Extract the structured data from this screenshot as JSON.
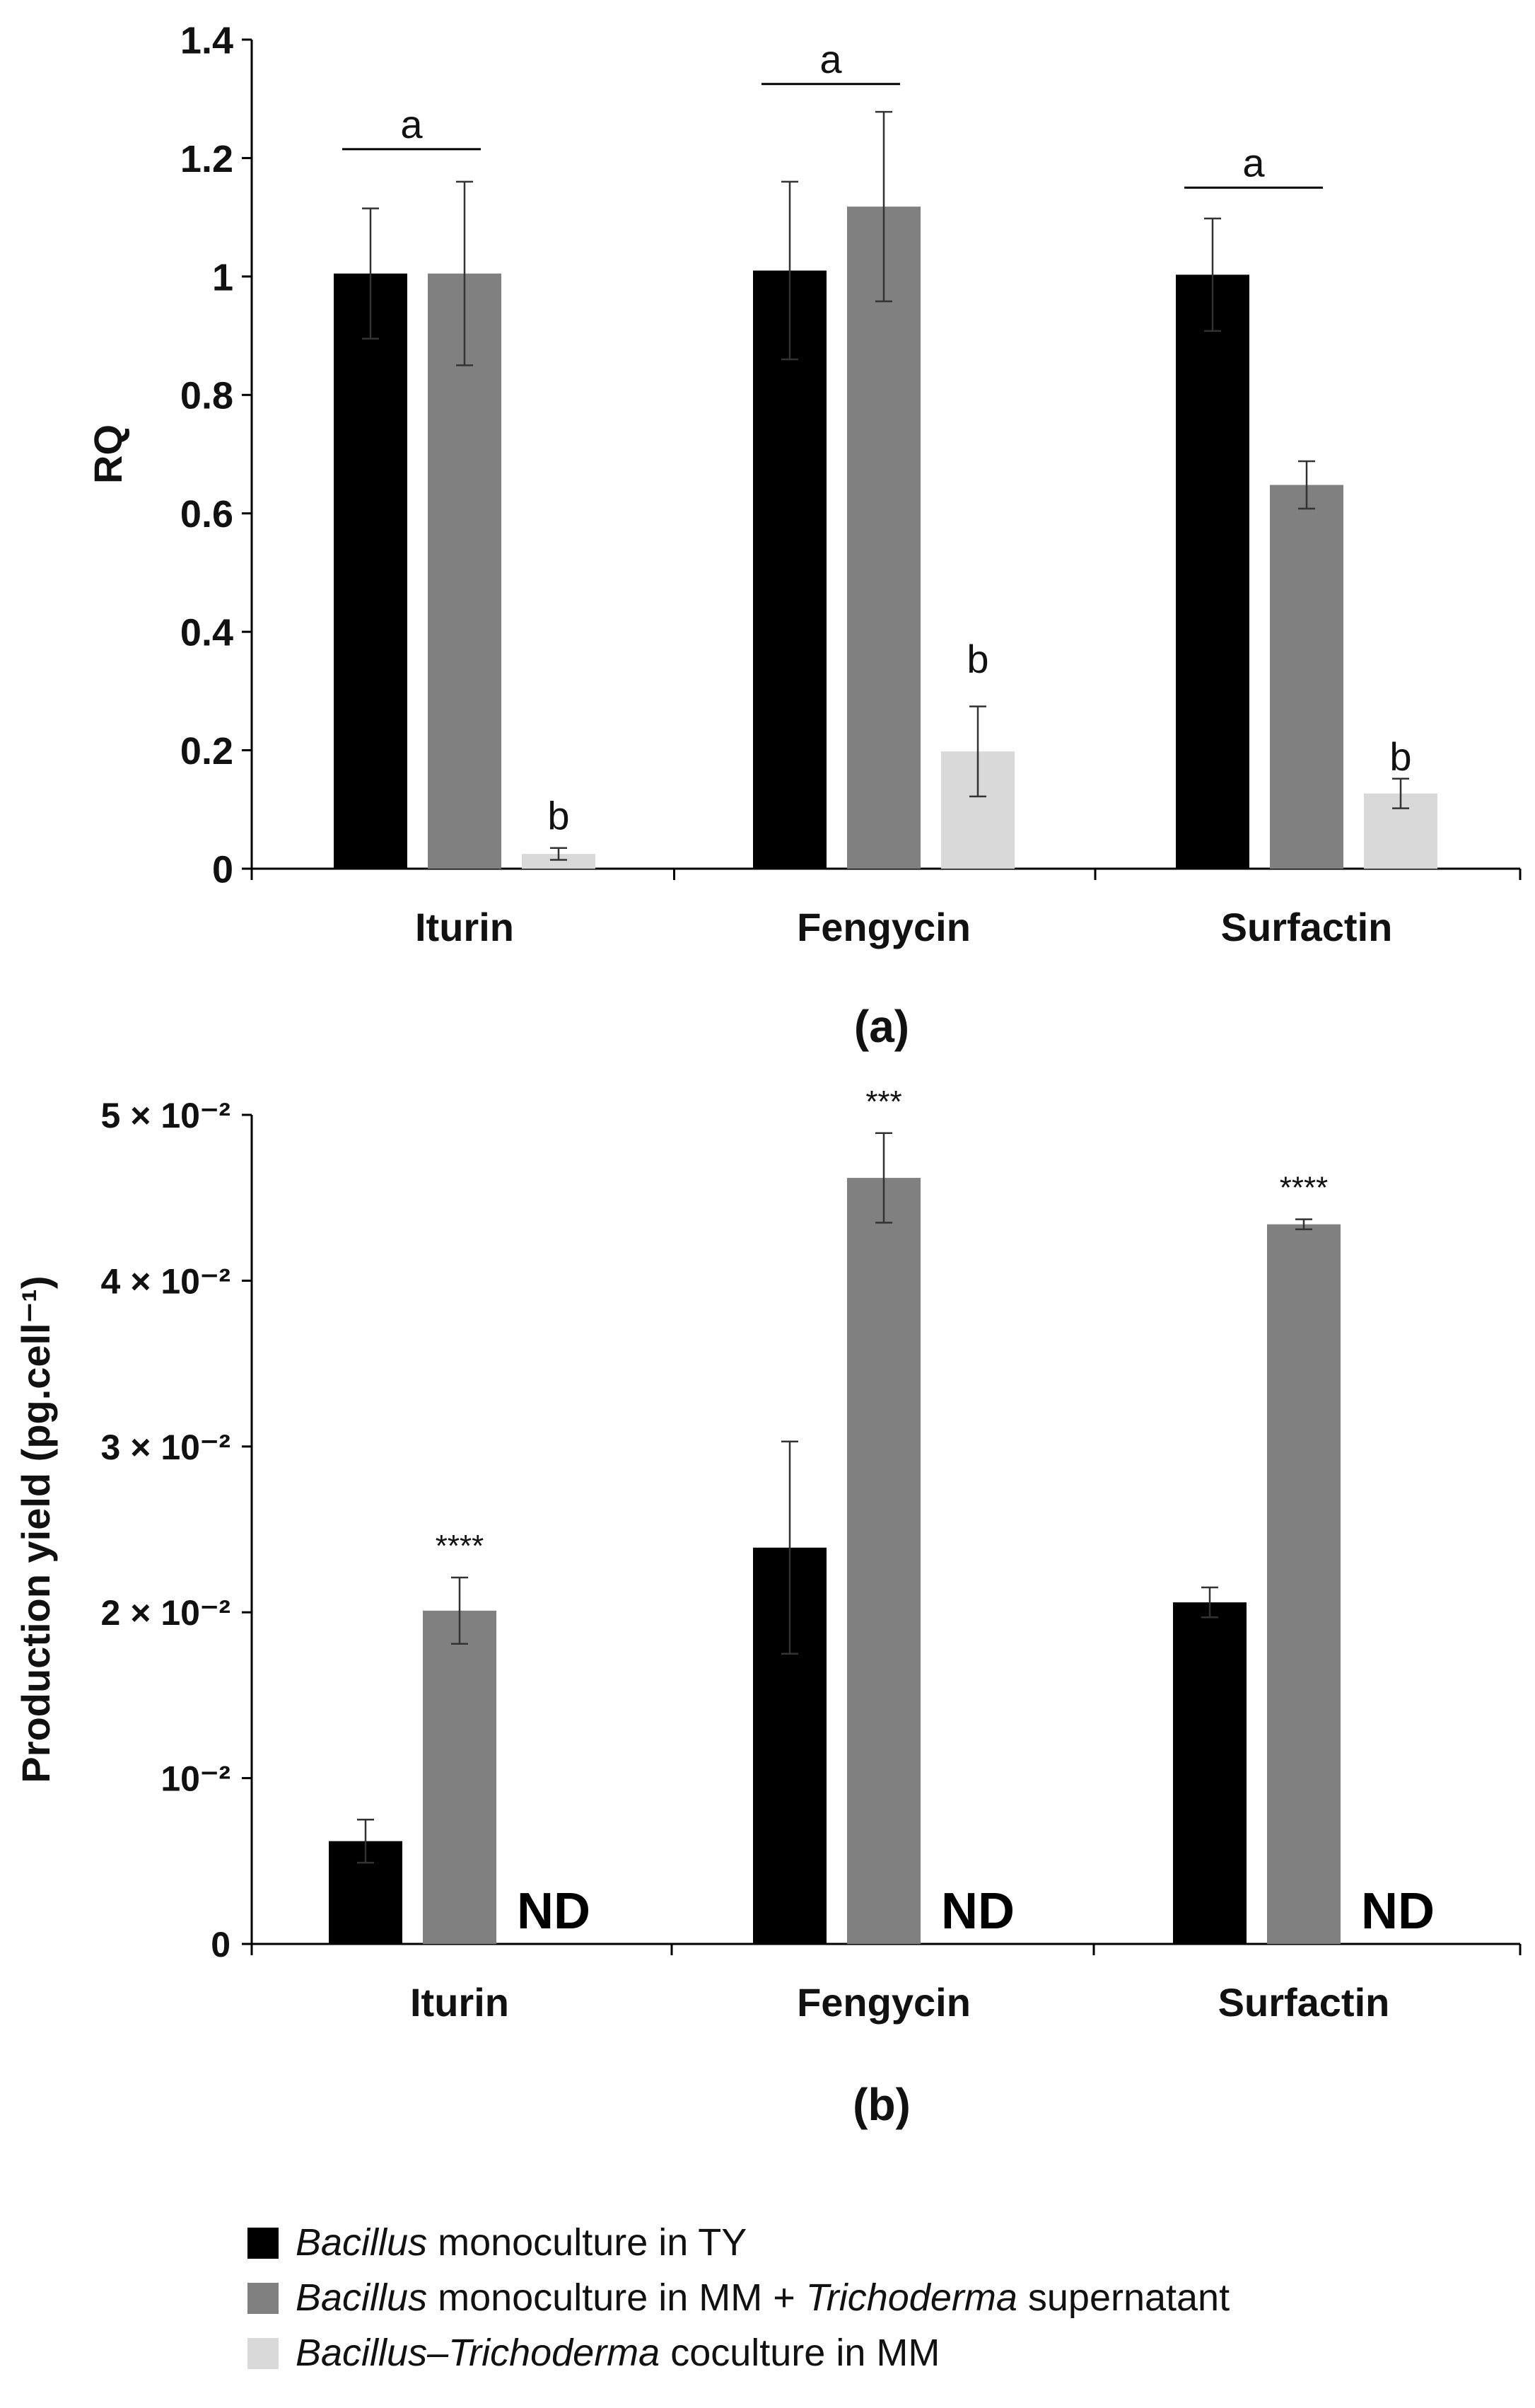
{
  "colors": {
    "series": [
      "#000000",
      "#808080",
      "#d9d9d9"
    ],
    "axis": "#000000",
    "text": "#111111"
  },
  "chart_data": [
    {
      "type": "bar",
      "panel_label": "(a)",
      "ylabel": "RQ",
      "xlabel": "",
      "categories": [
        "Iturin",
        "Fengycin",
        "Surfactin"
      ],
      "ylim": [
        0,
        1.4
      ],
      "yticks": [
        0,
        0.2,
        0.4,
        0.6,
        0.8,
        1,
        1.2,
        1.4
      ],
      "ytick_labels": [
        "0",
        "0.2",
        "0.4",
        "0.6",
        "0.8",
        "1",
        "1.2",
        "1.4"
      ],
      "series": [
        {
          "name": "Bacillus monoculture in TY",
          "values": [
            1.005,
            1.01,
            1.003
          ],
          "errors": [
            0.11,
            0.15,
            0.095
          ]
        },
        {
          "name": "Bacillus monoculture in MM + Trichoderma supernatant",
          "values": [
            1.005,
            1.118,
            0.648
          ],
          "errors": [
            0.155,
            0.16,
            0.04
          ]
        },
        {
          "name": "Bacillus–Trichoderma coculture in MM",
          "values": [
            0.025,
            0.198,
            0.127
          ],
          "errors": [
            0.01,
            0.076,
            0.025
          ]
        }
      ],
      "annotations": [
        {
          "category": "Iturin",
          "text": "a",
          "y": 1.215,
          "bracket": "series1-2"
        },
        {
          "category": "Iturin",
          "text": "b",
          "y": 0.09,
          "bracket": "series3"
        },
        {
          "category": "Fengycin",
          "text": "a",
          "y": 1.325,
          "bracket": "series1-2"
        },
        {
          "category": "Fengycin",
          "text": "b",
          "y": 0.355,
          "bracket": "series3"
        },
        {
          "category": "Surfactin",
          "text": "a",
          "y": 1.15,
          "bracket": "series1-2"
        },
        {
          "category": "Surfactin",
          "text": "b",
          "y": 0.19,
          "bracket": "series3"
        }
      ]
    },
    {
      "type": "bar",
      "panel_label": "(b)",
      "ylabel": "Production yield (pg.cell⁻¹)",
      "xlabel": "",
      "categories": [
        "Iturin",
        "Fengycin",
        "Surfactin"
      ],
      "ylim": [
        0,
        0.05
      ],
      "yticks": [
        0,
        0.01,
        0.02,
        0.03,
        0.04,
        0.05
      ],
      "ytick_labels": [
        "0",
        "10⁻²",
        "2 × 10⁻²",
        "3 × 10⁻²",
        "4 × 10⁻²",
        "5 × 10⁻²"
      ],
      "series": [
        {
          "name": "Bacillus monoculture in TY",
          "values": [
            0.0062,
            0.0239,
            0.0206
          ],
          "errors": [
            0.0013,
            0.0064,
            0.0009
          ]
        },
        {
          "name": "Bacillus monoculture in MM + Trichoderma supernatant",
          "values": [
            0.0201,
            0.0462,
            0.0434
          ],
          "errors": [
            0.002,
            0.0027,
            0.0003
          ]
        },
        {
          "name": "Bacillus–Trichoderma coculture in MM",
          "values": [
            null,
            null,
            null
          ],
          "labels": [
            "ND",
            "ND",
            "ND"
          ]
        }
      ],
      "annotations": [
        {
          "category": "Iturin",
          "text": "****",
          "series": 2
        },
        {
          "category": "Fengycin",
          "text": "***",
          "series": 2
        },
        {
          "category": "Surfactin",
          "text": "****",
          "series": 2
        }
      ]
    }
  ],
  "legend": [
    {
      "italic_a": "Bacillus",
      "plain_a": " monoculture  in TY",
      "italic_b": "",
      "plain_b": ""
    },
    {
      "italic_a": "Bacillus",
      "plain_a": " monoculture  in MM + ",
      "italic_b": "Trichoderma",
      "plain_b": " supernatant"
    },
    {
      "italic_a": "Bacillus–Trichoderma",
      "plain_a": " coculture  in MM",
      "italic_b": "",
      "plain_b": ""
    }
  ]
}
